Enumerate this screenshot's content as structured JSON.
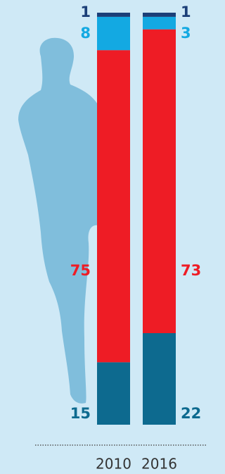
{
  "chart_data": {
    "type": "stacked-bar",
    "categories": [
      "2010",
      "2016"
    ],
    "series": [
      {
        "color": "#0d6a8f",
        "values": [
          15,
          22
        ]
      },
      {
        "color": "#ee1c25",
        "values": [
          75,
          73
        ]
      },
      {
        "color": "#13a9e2",
        "values": [
          8,
          3
        ]
      },
      {
        "color": "#1b3f78",
        "values": [
          1,
          1
        ]
      }
    ]
  }
}
